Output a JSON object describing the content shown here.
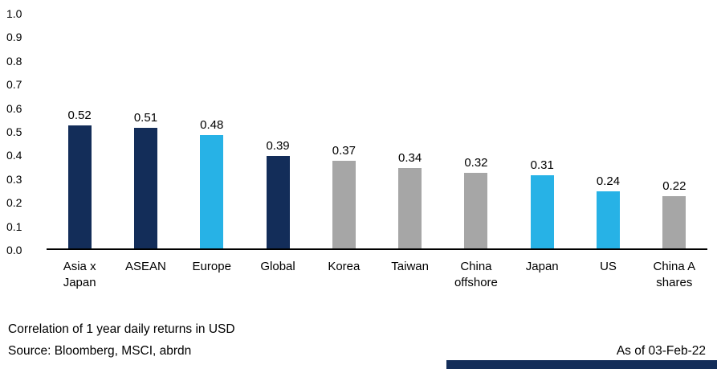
{
  "chart_data": {
    "type": "bar",
    "title": "",
    "xlabel": "",
    "ylabel": "",
    "categories": [
      "Asia x Japan",
      "ASEAN",
      "Europe",
      "Global",
      "Korea",
      "Taiwan",
      "China offshore",
      "Japan",
      "US",
      "China A shares"
    ],
    "values": [
      0.52,
      0.51,
      0.48,
      0.39,
      0.37,
      0.34,
      0.32,
      0.31,
      0.24,
      0.22
    ],
    "labels": [
      "0.52",
      "0.51",
      "0.48",
      "0.39",
      "0.37",
      "0.34",
      "0.32",
      "0.31",
      "0.24",
      "0.22"
    ],
    "bar_colors": [
      "navy",
      "navy",
      "lightblue",
      "navy",
      "gray",
      "gray",
      "gray",
      "lightblue",
      "lightblue",
      "gray"
    ],
    "palette": {
      "navy": "#132d59",
      "lightblue": "#27b2e6",
      "gray": "#a6a6a6"
    },
    "ylim": [
      0,
      1
    ],
    "y_ticks": [
      "0.0",
      "0.1",
      "0.2",
      "0.3",
      "0.4",
      "0.5",
      "0.6",
      "0.7",
      "0.8",
      "0.9",
      "1.0"
    ],
    "grid": false,
    "legend": false
  },
  "footer": {
    "note": "Correlation of 1 year daily returns in USD",
    "source": "Source: Bloomberg, MSCI, abrdn",
    "as_of": "As of 03-Feb-22"
  },
  "brand": {
    "strip_color": "#132d59"
  }
}
